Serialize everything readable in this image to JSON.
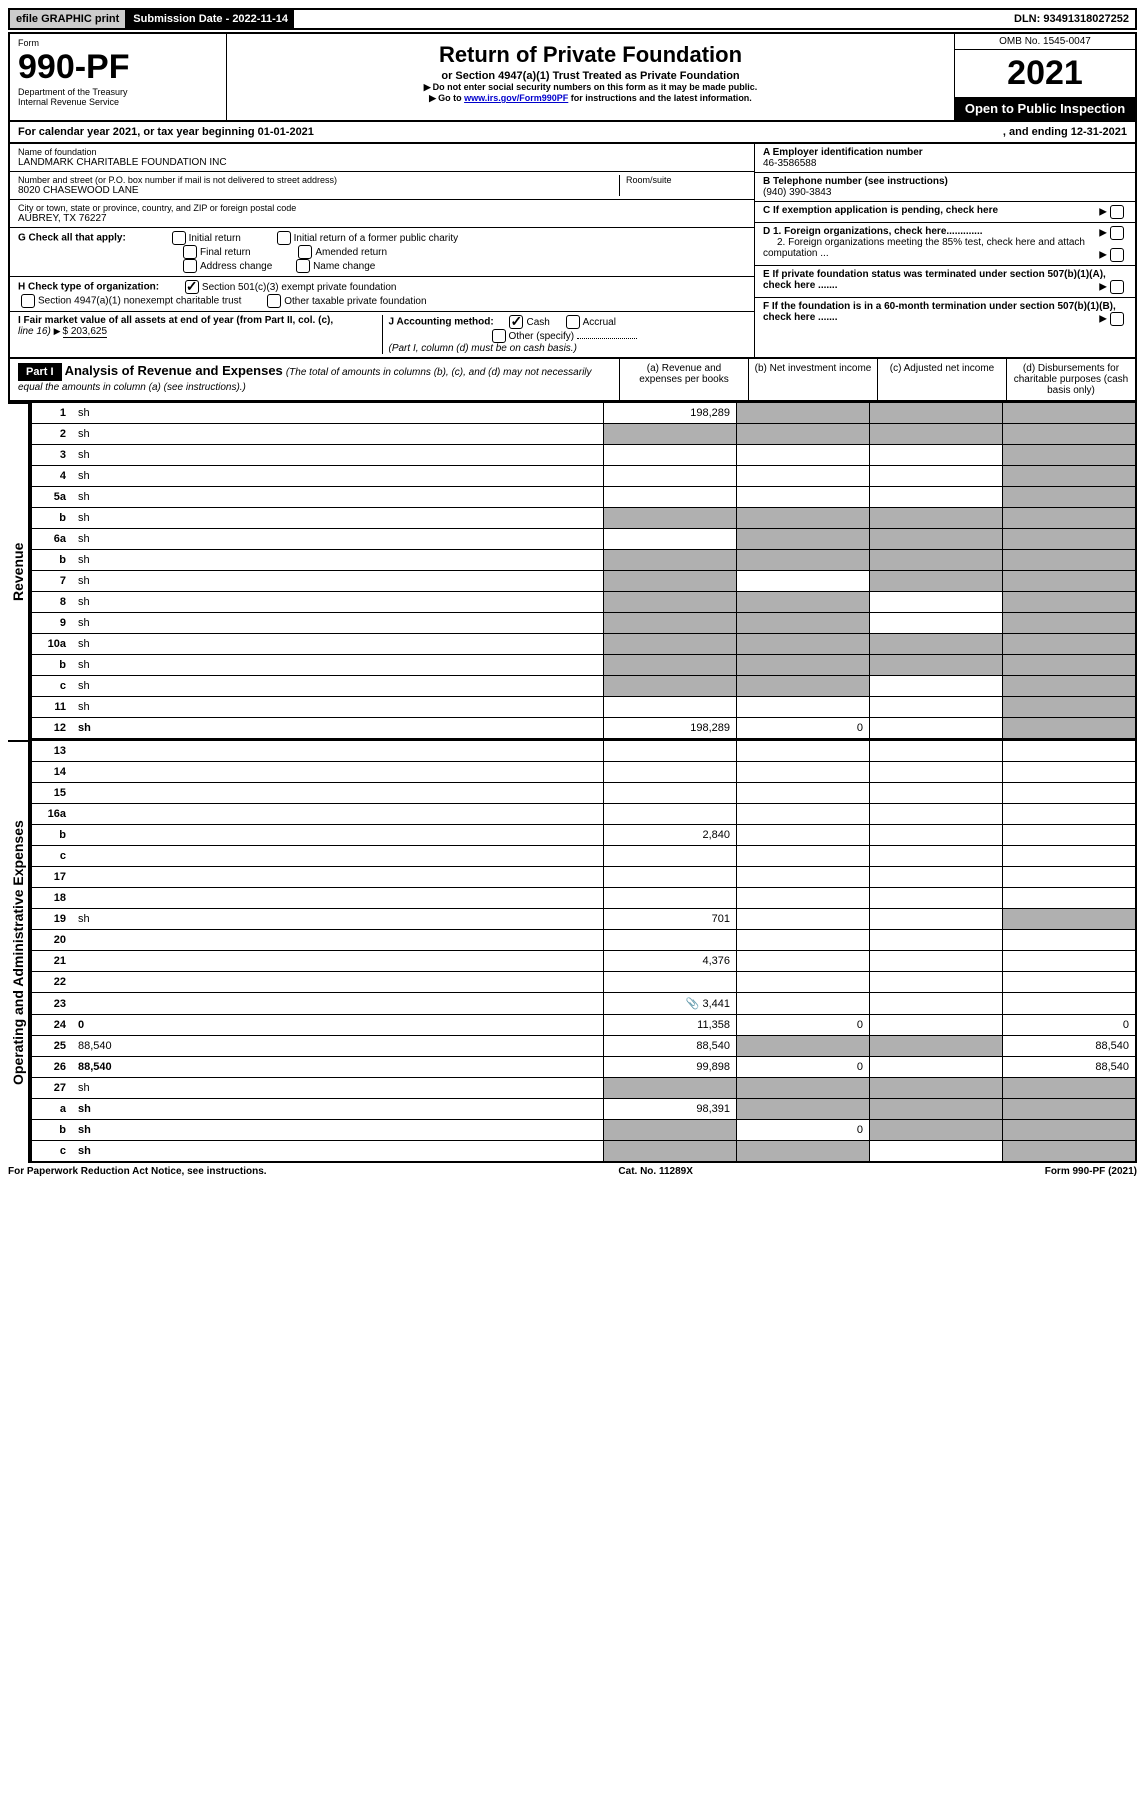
{
  "top": {
    "efile": "efile GRAPHIC print",
    "submission": "Submission Date - 2022-11-14",
    "dln": "DLN: 93491318027252"
  },
  "header": {
    "form_label": "Form",
    "form_no": "990-PF",
    "dept": "Department of the Treasury",
    "irs": "Internal Revenue Service",
    "title": "Return of Private Foundation",
    "subtitle": "or Section 4947(a)(1) Trust Treated as Private Foundation",
    "note1": "Do not enter social security numbers on this form as it may be made public.",
    "note2_pre": "Go to ",
    "note2_link": "www.irs.gov/Form990PF",
    "note2_post": " for instructions and the latest information.",
    "omb": "OMB No. 1545-0047",
    "year": "2021",
    "open": "Open to Public Inspection"
  },
  "cal": {
    "text": "For calendar year 2021, or tax year beginning 01-01-2021",
    "end": ", and ending 12-31-2021"
  },
  "info": {
    "name_label": "Name of foundation",
    "name": "LANDMARK CHARITABLE FOUNDATION INC",
    "addr_label": "Number and street (or P.O. box number if mail is not delivered to street address)",
    "addr": "8020 CHASEWOOD LANE",
    "room_label": "Room/suite",
    "city_label": "City or town, state or province, country, and ZIP or foreign postal code",
    "city": "AUBREY, TX  76227",
    "a_label": "A Employer identification number",
    "a_val": "46-3586588",
    "b_label": "B Telephone number (see instructions)",
    "b_val": "(940) 390-3843",
    "c_label": "C If exemption application is pending, check here",
    "d1": "D 1. Foreign organizations, check here.............",
    "d2": "2. Foreign organizations meeting the 85% test, check here and attach computation ...",
    "e": "E  If private foundation status was terminated under section 507(b)(1)(A), check here .......",
    "f": "F  If the foundation is in a 60-month termination under section 507(b)(1)(B), check here .......",
    "g_label": "G Check all that apply:",
    "g_opts": [
      "Initial return",
      "Initial return of a former public charity",
      "Final return",
      "Amended return",
      "Address change",
      "Name change"
    ],
    "h_label": "H Check type of organization:",
    "h_opts": [
      "Section 501(c)(3) exempt private foundation",
      "Section 4947(a)(1) nonexempt charitable trust",
      "Other taxable private foundation"
    ],
    "i_label": "I Fair market value of all assets at end of year (from Part II, col. (c),",
    "i_line": "line 16)",
    "i_val": "$  203,625",
    "j_label": "J Accounting method:",
    "j_cash": "Cash",
    "j_accrual": "Accrual",
    "j_other": "Other (specify)",
    "j_note": "(Part I, column (d) must be on cash basis.)"
  },
  "part1": {
    "label": "Part I",
    "title": "Analysis of Revenue and Expenses",
    "title_note": "(The total of amounts in columns (b), (c), and (d) may not necessarily equal the amounts in column (a) (see instructions).)",
    "col_a": "(a)   Revenue and expenses per books",
    "col_b": "(b)   Net investment income",
    "col_c": "(c)   Adjusted net income",
    "col_d": "(d)   Disbursements for charitable purposes (cash basis only)"
  },
  "sections": {
    "revenue": "Revenue",
    "op_exp": "Operating and Administrative Expenses"
  },
  "lines": [
    {
      "n": "1",
      "d": "sh",
      "a": "198,289",
      "b": "sh",
      "c": "sh"
    },
    {
      "n": "2",
      "d": "sh",
      "a": "sh",
      "b": "sh",
      "c": "sh"
    },
    {
      "n": "3",
      "d": "sh",
      "a": "",
      "b": "",
      "c": ""
    },
    {
      "n": "4",
      "d": "sh",
      "a": "",
      "b": "",
      "c": ""
    },
    {
      "n": "5a",
      "d": "sh",
      "a": "",
      "b": "",
      "c": ""
    },
    {
      "n": "b",
      "d": "sh",
      "a": "sh",
      "b": "sh",
      "c": "sh"
    },
    {
      "n": "6a",
      "d": "sh",
      "a": "",
      "b": "sh",
      "c": "sh"
    },
    {
      "n": "b",
      "d": "sh",
      "a": "sh",
      "b": "sh",
      "c": "sh"
    },
    {
      "n": "7",
      "d": "sh",
      "a": "sh",
      "b": "",
      "c": "sh"
    },
    {
      "n": "8",
      "d": "sh",
      "a": "sh",
      "b": "sh",
      "c": ""
    },
    {
      "n": "9",
      "d": "sh",
      "a": "sh",
      "b": "sh",
      "c": ""
    },
    {
      "n": "10a",
      "d": "sh",
      "a": "sh",
      "b": "sh",
      "c": "sh"
    },
    {
      "n": "b",
      "d": "sh",
      "a": "sh",
      "b": "sh",
      "c": "sh"
    },
    {
      "n": "c",
      "d": "sh",
      "a": "sh",
      "b": "sh",
      "c": ""
    },
    {
      "n": "11",
      "d": "sh",
      "a": "",
      "b": "",
      "c": ""
    },
    {
      "n": "12",
      "d": "sh",
      "a": "198,289",
      "b": "0",
      "c": "",
      "bold": true
    }
  ],
  "exp_lines": [
    {
      "n": "13",
      "d": "",
      "a": "",
      "b": "",
      "c": ""
    },
    {
      "n": "14",
      "d": "",
      "a": "",
      "b": "",
      "c": ""
    },
    {
      "n": "15",
      "d": "",
      "a": "",
      "b": "",
      "c": ""
    },
    {
      "n": "16a",
      "d": "",
      "a": "",
      "b": "",
      "c": ""
    },
    {
      "n": "b",
      "d": "",
      "a": "2,840",
      "b": "",
      "c": ""
    },
    {
      "n": "c",
      "d": "",
      "a": "",
      "b": "",
      "c": ""
    },
    {
      "n": "17",
      "d": "",
      "a": "",
      "b": "",
      "c": ""
    },
    {
      "n": "18",
      "d": "",
      "a": "",
      "b": "",
      "c": ""
    },
    {
      "n": "19",
      "d": "sh",
      "a": "701",
      "b": "",
      "c": ""
    },
    {
      "n": "20",
      "d": "",
      "a": "",
      "b": "",
      "c": ""
    },
    {
      "n": "21",
      "d": "",
      "a": "4,376",
      "b": "",
      "c": ""
    },
    {
      "n": "22",
      "d": "",
      "a": "",
      "b": "",
      "c": ""
    },
    {
      "n": "23",
      "d": "",
      "a": "3,441",
      "b": "",
      "c": "",
      "icon": true
    },
    {
      "n": "24",
      "d": "0",
      "a": "11,358",
      "b": "0",
      "c": "",
      "bold": true
    },
    {
      "n": "25",
      "d": "88,540",
      "a": "88,540",
      "b": "sh",
      "c": "sh"
    },
    {
      "n": "26",
      "d": "88,540",
      "a": "99,898",
      "b": "0",
      "c": "",
      "bold": true
    },
    {
      "n": "27",
      "d": "sh",
      "a": "sh",
      "b": "sh",
      "c": "sh"
    },
    {
      "n": "a",
      "d": "sh",
      "a": "98,391",
      "b": "sh",
      "c": "sh",
      "bold": true
    },
    {
      "n": "b",
      "d": "sh",
      "a": "sh",
      "b": "0",
      "c": "sh",
      "bold": true
    },
    {
      "n": "c",
      "d": "sh",
      "a": "sh",
      "b": "sh",
      "c": "",
      "bold": true
    }
  ],
  "footer": {
    "left": "For Paperwork Reduction Act Notice, see instructions.",
    "mid": "Cat. No. 11289X",
    "right": "Form 990-PF (2021)"
  }
}
